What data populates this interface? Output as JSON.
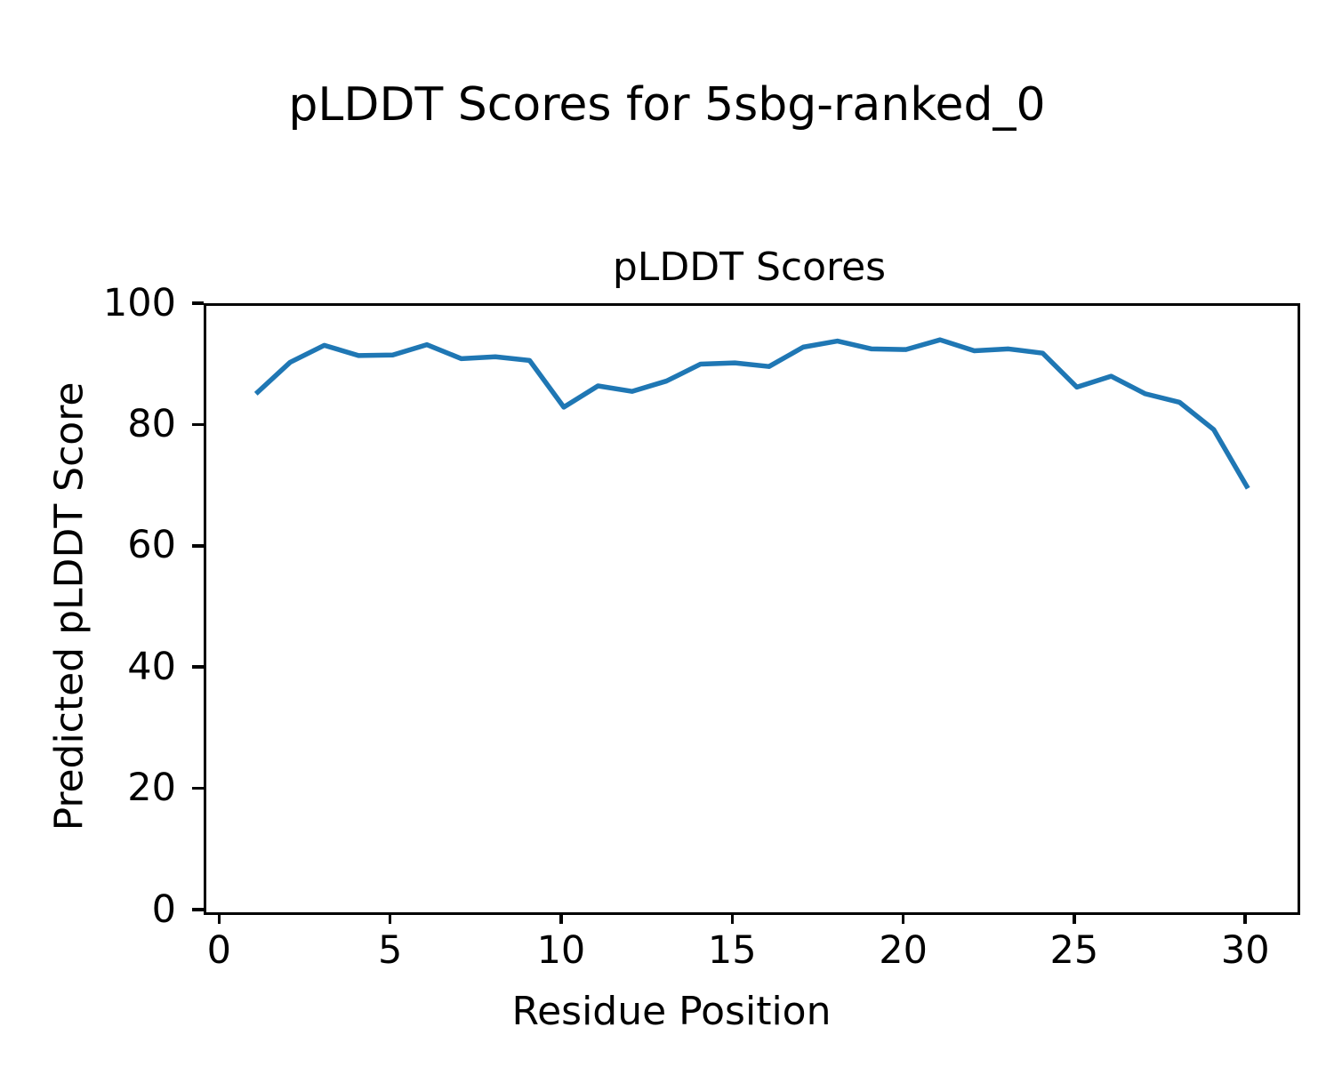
{
  "suptitle": "pLDDT Scores for 5sbg-ranked_0",
  "chart_data": {
    "type": "line",
    "title": "pLDDT Scores",
    "xlabel": "Residue Position",
    "ylabel": "Predicted pLDDT Score",
    "x": [
      1,
      2,
      3,
      4,
      5,
      6,
      7,
      8,
      9,
      10,
      11,
      12,
      13,
      14,
      15,
      16,
      17,
      18,
      19,
      20,
      21,
      22,
      23,
      24,
      25,
      26,
      27,
      28,
      29,
      30
    ],
    "series": [
      {
        "name": "pLDDT",
        "values": [
          85.5,
          90.7,
          93.5,
          91.8,
          91.9,
          93.6,
          91.3,
          91.6,
          91.0,
          83.3,
          86.8,
          85.9,
          87.6,
          90.4,
          90.6,
          90.0,
          93.2,
          94.2,
          92.9,
          92.8,
          94.4,
          92.6,
          92.9,
          92.2,
          86.6,
          88.4,
          85.5,
          84.1,
          79.6,
          69.9
        ]
      }
    ],
    "xlim": [
      -0.45,
      31.45
    ],
    "ylim": [
      0,
      100
    ],
    "x_ticks": [
      0,
      5,
      10,
      15,
      20,
      25,
      30
    ],
    "y_ticks": [
      0,
      20,
      40,
      60,
      80,
      100
    ],
    "line_color": "#1f77b4",
    "line_width": 5.5,
    "grid": false,
    "legend": null,
    "frame_color": "#000000",
    "text_color": "#000000"
  }
}
